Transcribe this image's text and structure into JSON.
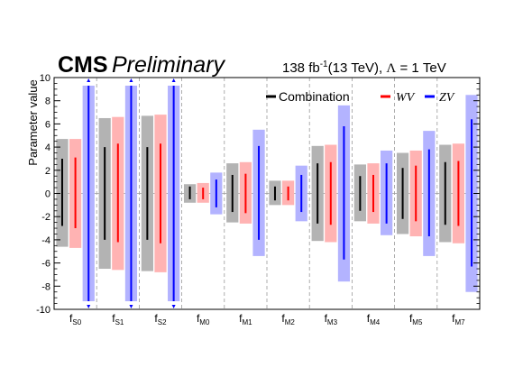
{
  "header": {
    "experiment": "CMS",
    "status": "Preliminary",
    "lumi_value": "138 fb",
    "lumi_exp": "-1",
    "energy": "(13 TeV), ",
    "lambda_symbol": "Λ",
    "lambda_text": " = 1 TeV"
  },
  "chart_data": {
    "type": "bar",
    "ylabel": "Parameter value",
    "ylim": [
      -10,
      10
    ],
    "yticks": [
      -10,
      -8,
      -6,
      -4,
      -2,
      0,
      2,
      4,
      6,
      8,
      10
    ],
    "categories": [
      {
        "base": "f",
        "sub": "S0"
      },
      {
        "base": "f",
        "sub": "S1"
      },
      {
        "base": "f",
        "sub": "S2"
      },
      {
        "base": "f",
        "sub": "M0"
      },
      {
        "base": "f",
        "sub": "M1"
      },
      {
        "base": "f",
        "sub": "M2"
      },
      {
        "base": "f",
        "sub": "M3"
      },
      {
        "base": "f",
        "sub": "M4"
      },
      {
        "base": "f",
        "sub": "M5"
      },
      {
        "base": "f",
        "sub": "M7"
      }
    ],
    "legend_position": "top-right",
    "series": [
      {
        "name": "Combination",
        "band_color": "#b3b3b3",
        "line_color": "#000000",
        "band": [
          [
            -4.6,
            4.7
          ],
          [
            -6.5,
            6.5
          ],
          [
            -6.7,
            6.7
          ],
          [
            -0.8,
            0.8
          ],
          [
            -2.5,
            2.6
          ],
          [
            -1.0,
            1.1
          ],
          [
            -4.1,
            4.1
          ],
          [
            -2.4,
            2.5
          ],
          [
            -3.5,
            3.5
          ],
          [
            -4.2,
            4.2
          ]
        ],
        "line": [
          [
            -2.8,
            3.0
          ],
          [
            -4.0,
            4.0
          ],
          [
            -4.0,
            4.0
          ],
          [
            -0.5,
            0.6
          ],
          [
            -1.6,
            1.6
          ],
          [
            -0.6,
            0.6
          ],
          [
            -2.6,
            2.6
          ],
          [
            -1.5,
            1.5
          ],
          [
            -2.2,
            2.2
          ],
          [
            -2.7,
            2.7
          ]
        ]
      },
      {
        "name": "WV",
        "band_color": "#ffb3b3",
        "line_color": "#ff0000",
        "band": [
          [
            -4.7,
            4.7
          ],
          [
            -6.6,
            6.6
          ],
          [
            -6.8,
            6.8
          ],
          [
            -0.8,
            0.9
          ],
          [
            -2.6,
            2.7
          ],
          [
            -1.0,
            1.1
          ],
          [
            -4.2,
            4.2
          ],
          [
            -2.6,
            2.6
          ],
          [
            -3.7,
            3.7
          ],
          [
            -4.3,
            4.3
          ]
        ],
        "line": [
          [
            -3.0,
            3.1
          ],
          [
            -4.2,
            4.3
          ],
          [
            -4.3,
            4.3
          ],
          [
            -0.5,
            0.5
          ],
          [
            -1.7,
            1.7
          ],
          [
            -0.6,
            0.6
          ],
          [
            -2.7,
            2.7
          ],
          [
            -1.6,
            1.6
          ],
          [
            -2.4,
            2.4
          ],
          [
            -2.8,
            2.8
          ]
        ]
      },
      {
        "name": "ZV",
        "band_color": "#b3b3ff",
        "line_color": "#0000ff",
        "band": [
          [
            -9.3,
            9.3
          ],
          [
            -9.3,
            9.3
          ],
          [
            -9.3,
            9.3
          ],
          [
            -1.8,
            1.8
          ],
          [
            -5.4,
            5.5
          ],
          [
            -2.4,
            2.4
          ],
          [
            -7.6,
            7.6
          ],
          [
            -3.6,
            3.7
          ],
          [
            -5.4,
            5.4
          ],
          [
            -8.5,
            8.5
          ]
        ],
        "line": [
          [
            -9.3,
            9.3
          ],
          [
            -9.3,
            9.3
          ],
          [
            -9.3,
            9.3
          ],
          [
            -1.2,
            1.2
          ],
          [
            -4.0,
            4.1
          ],
          [
            -1.6,
            1.6
          ],
          [
            -5.7,
            5.8
          ],
          [
            -2.6,
            2.6
          ],
          [
            -3.7,
            3.8
          ],
          [
            -6.3,
            6.4
          ]
        ],
        "clipped": [
          true,
          true,
          true,
          false,
          false,
          false,
          false,
          false,
          false,
          false
        ]
      }
    ],
    "zero_line": true,
    "category_separators": "dashed"
  }
}
